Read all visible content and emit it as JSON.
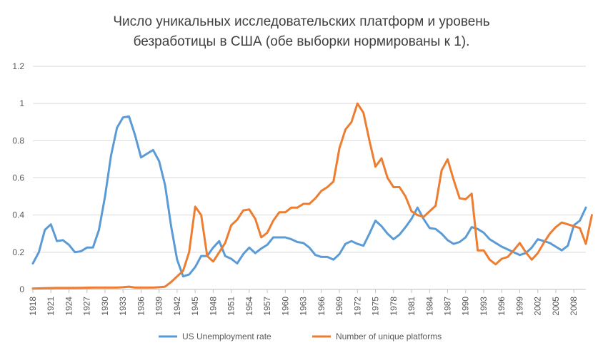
{
  "chart_data": {
    "type": "line",
    "title_lines": [
      "Число уникальных исследовательских платформ и уровень",
      "безработицы в США  (обе выборки нормированы к 1)."
    ],
    "xlabel": "",
    "ylabel": "",
    "ylim": [
      0,
      1.2
    ],
    "xlim": [
      1918,
      2010
    ],
    "y_ticks": [
      0,
      0.2,
      0.4,
      0.6,
      0.8,
      1,
      1.2
    ],
    "y_tick_labels": [
      "0",
      "0.2",
      "0.4",
      "0.6",
      "0.8",
      "1",
      "1.2"
    ],
    "x_ticks": [
      1918,
      1921,
      1924,
      1927,
      1930,
      1933,
      1936,
      1939,
      1942,
      1945,
      1948,
      1951,
      1954,
      1957,
      1960,
      1963,
      1966,
      1969,
      1972,
      1975,
      1978,
      1981,
      1984,
      1987,
      1990,
      1993,
      1996,
      1999,
      2002,
      2005,
      2008
    ],
    "grid": true,
    "legend_position": "bottom",
    "series": [
      {
        "name": "US Unemployment rate",
        "color": "#5B9BD5",
        "points": [
          [
            1918,
            0.14
          ],
          [
            1919,
            0.2
          ],
          [
            1920,
            0.32
          ],
          [
            1921,
            0.35
          ],
          [
            1922,
            0.26
          ],
          [
            1923,
            0.265
          ],
          [
            1924,
            0.24
          ],
          [
            1925,
            0.2
          ],
          [
            1926,
            0.205
          ],
          [
            1927,
            0.225
          ],
          [
            1928,
            0.225
          ],
          [
            1929,
            0.32
          ],
          [
            1930,
            0.5
          ],
          [
            1931,
            0.72
          ],
          [
            1932,
            0.87
          ],
          [
            1933,
            0.925
          ],
          [
            1934,
            0.93
          ],
          [
            1935,
            0.83
          ],
          [
            1936,
            0.71
          ],
          [
            1937,
            0.73
          ],
          [
            1938,
            0.75
          ],
          [
            1939,
            0.69
          ],
          [
            1940,
            0.56
          ],
          [
            1941,
            0.34
          ],
          [
            1942,
            0.16
          ],
          [
            1943,
            0.07
          ],
          [
            1944,
            0.08
          ],
          [
            1945,
            0.12
          ],
          [
            1946,
            0.18
          ],
          [
            1947,
            0.18
          ],
          [
            1948,
            0.225
          ],
          [
            1949,
            0.26
          ],
          [
            1950,
            0.18
          ],
          [
            1951,
            0.165
          ],
          [
            1952,
            0.14
          ],
          [
            1953,
            0.19
          ],
          [
            1954,
            0.225
          ],
          [
            1955,
            0.195
          ],
          [
            1956,
            0.22
          ],
          [
            1957,
            0.24
          ],
          [
            1958,
            0.28
          ],
          [
            1959,
            0.28
          ],
          [
            1960,
            0.28
          ],
          [
            1961,
            0.27
          ],
          [
            1962,
            0.255
          ],
          [
            1963,
            0.25
          ],
          [
            1964,
            0.225
          ],
          [
            1965,
            0.185
          ],
          [
            1966,
            0.175
          ],
          [
            1967,
            0.175
          ],
          [
            1968,
            0.16
          ],
          [
            1969,
            0.19
          ],
          [
            1970,
            0.245
          ],
          [
            1971,
            0.26
          ],
          [
            1972,
            0.245
          ],
          [
            1973,
            0.235
          ],
          [
            1974,
            0.3
          ],
          [
            1975,
            0.37
          ],
          [
            1976,
            0.34
          ],
          [
            1977,
            0.3
          ],
          [
            1978,
            0.27
          ],
          [
            1979,
            0.295
          ],
          [
            1980,
            0.335
          ],
          [
            1981,
            0.38
          ],
          [
            1982,
            0.44
          ],
          [
            1983,
            0.38
          ],
          [
            1984,
            0.33
          ],
          [
            1985,
            0.325
          ],
          [
            1986,
            0.3
          ],
          [
            1987,
            0.265
          ],
          [
            1988,
            0.245
          ],
          [
            1989,
            0.255
          ],
          [
            1990,
            0.28
          ],
          [
            1991,
            0.335
          ],
          [
            1992,
            0.325
          ],
          [
            1993,
            0.305
          ],
          [
            1994,
            0.27
          ],
          [
            1995,
            0.25
          ],
          [
            1996,
            0.23
          ],
          [
            1997,
            0.215
          ],
          [
            1998,
            0.2
          ],
          [
            1999,
            0.185
          ],
          [
            2000,
            0.195
          ],
          [
            2001,
            0.225
          ],
          [
            2002,
            0.27
          ],
          [
            2003,
            0.26
          ],
          [
            2004,
            0.25
          ],
          [
            2005,
            0.23
          ],
          [
            2006,
            0.21
          ],
          [
            2007,
            0.235
          ],
          [
            2008,
            0.345
          ],
          [
            2009,
            0.37
          ],
          [
            2010,
            0.44
          ]
        ]
      },
      {
        "name": "Number of unique platforms",
        "color": "#ED7D31",
        "points": [
          [
            1918,
            0.005
          ],
          [
            1920,
            0.007
          ],
          [
            1922,
            0.008
          ],
          [
            1924,
            0.008
          ],
          [
            1926,
            0.009
          ],
          [
            1928,
            0.01
          ],
          [
            1930,
            0.01
          ],
          [
            1932,
            0.01
          ],
          [
            1933,
            0.012
          ],
          [
            1934,
            0.015
          ],
          [
            1935,
            0.01
          ],
          [
            1936,
            0.01
          ],
          [
            1938,
            0.01
          ],
          [
            1939,
            0.012
          ],
          [
            1940,
            0.015
          ],
          [
            1941,
            0.04
          ],
          [
            1942,
            0.07
          ],
          [
            1943,
            0.1
          ],
          [
            1944,
            0.2
          ],
          [
            1945,
            0.445
          ],
          [
            1946,
            0.4
          ],
          [
            1947,
            0.18
          ],
          [
            1948,
            0.15
          ],
          [
            1949,
            0.2
          ],
          [
            1950,
            0.25
          ],
          [
            1951,
            0.345
          ],
          [
            1952,
            0.375
          ],
          [
            1953,
            0.425
          ],
          [
            1954,
            0.43
          ],
          [
            1955,
            0.38
          ],
          [
            1956,
            0.28
          ],
          [
            1957,
            0.305
          ],
          [
            1958,
            0.37
          ],
          [
            1959,
            0.415
          ],
          [
            1960,
            0.415
          ],
          [
            1961,
            0.44
          ],
          [
            1962,
            0.44
          ],
          [
            1963,
            0.46
          ],
          [
            1964,
            0.46
          ],
          [
            1965,
            0.49
          ],
          [
            1966,
            0.53
          ],
          [
            1967,
            0.55
          ],
          [
            1968,
            0.58
          ],
          [
            1969,
            0.76
          ],
          [
            1970,
            0.86
          ],
          [
            1971,
            0.9
          ],
          [
            1972,
            1.0
          ],
          [
            1973,
            0.95
          ],
          [
            1974,
            0.8
          ],
          [
            1975,
            0.66
          ],
          [
            1976,
            0.705
          ],
          [
            1977,
            0.6
          ],
          [
            1978,
            0.55
          ],
          [
            1979,
            0.55
          ],
          [
            1980,
            0.5
          ],
          [
            1981,
            0.42
          ],
          [
            1982,
            0.4
          ],
          [
            1983,
            0.39
          ],
          [
            1984,
            0.42
          ],
          [
            1985,
            0.45
          ],
          [
            1986,
            0.64
          ],
          [
            1987,
            0.7
          ],
          [
            1988,
            0.59
          ],
          [
            1989,
            0.49
          ],
          [
            1990,
            0.485
          ],
          [
            1991,
            0.515
          ],
          [
            1992,
            0.21
          ],
          [
            1993,
            0.21
          ],
          [
            1994,
            0.16
          ],
          [
            1995,
            0.135
          ],
          [
            1996,
            0.165
          ],
          [
            1997,
            0.175
          ],
          [
            1998,
            0.21
          ],
          [
            1999,
            0.25
          ],
          [
            2000,
            0.2
          ],
          [
            2001,
            0.16
          ],
          [
            2002,
            0.195
          ],
          [
            2003,
            0.25
          ],
          [
            2004,
            0.3
          ],
          [
            2005,
            0.335
          ],
          [
            2006,
            0.36
          ],
          [
            2007,
            0.35
          ],
          [
            2008,
            0.34
          ],
          [
            2009,
            0.33
          ],
          [
            2010,
            0.245
          ],
          [
            2011,
            0.4
          ]
        ]
      }
    ]
  }
}
